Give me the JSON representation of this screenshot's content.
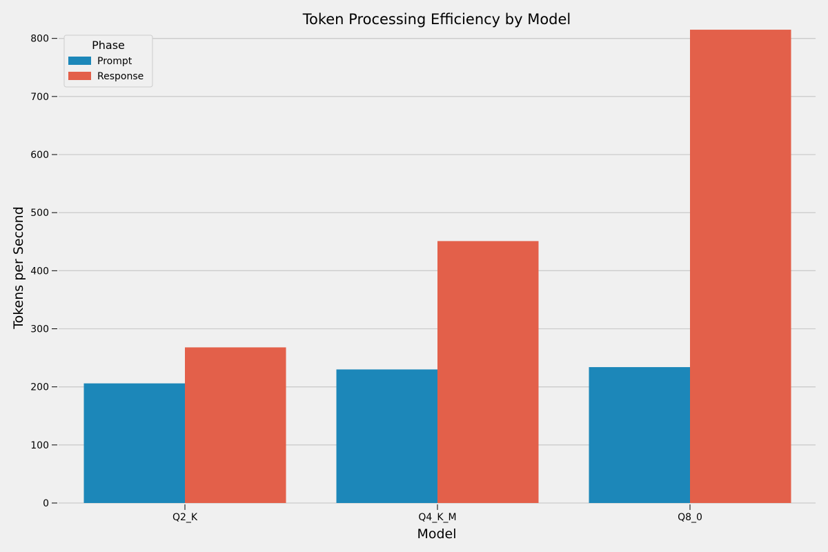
{
  "chart_data": {
    "type": "bar",
    "title": "Token Processing Efficiency by Model",
    "xlabel": "Model",
    "ylabel": "Tokens per Second",
    "categories": [
      "Q2_K",
      "Q4_K_M",
      "Q8_0"
    ],
    "series": [
      {
        "name": "Prompt",
        "values": [
          206,
          230,
          234
        ],
        "color": "#1c87b9"
      },
      {
        "name": "Response",
        "values": [
          268,
          451,
          815
        ],
        "color": "#e3604a"
      }
    ],
    "ylim": [
      0,
      840
    ],
    "yticks": [
      0,
      100,
      200,
      300,
      400,
      500,
      600,
      700,
      800
    ],
    "grid": "horizontal",
    "legend": {
      "title": "Phase",
      "position": "top-left"
    },
    "colors": {
      "background": "#f0f0f0",
      "grid": "#cbcbcb",
      "text": "#000000"
    }
  }
}
